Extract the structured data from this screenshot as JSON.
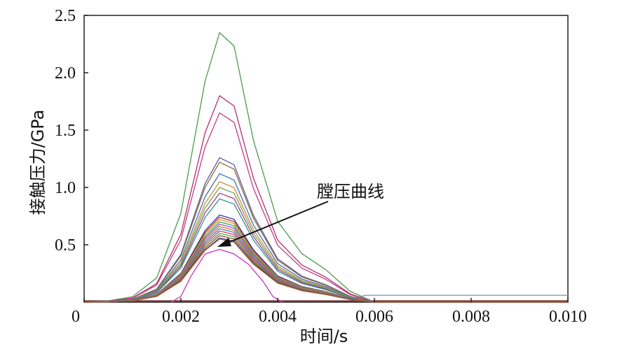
{
  "chart_data": {
    "type": "line",
    "title": "",
    "xlabel": "时间/s",
    "ylabel": "接触压力/GPa",
    "xlim": [
      0,
      0.01
    ],
    "ylim": [
      0,
      2.5
    ],
    "x_ticks": [
      0,
      0.002,
      0.004,
      0.006,
      0.008,
      0.01
    ],
    "x_tick_labels": [
      "0",
      "0.002",
      "0.004",
      "0.006",
      "0.008",
      "0.010"
    ],
    "y_ticks": [
      0.5,
      1.0,
      1.5,
      2.0,
      2.5
    ],
    "y_tick_labels": [
      "0.5",
      "1.0",
      "1.5",
      "2.0",
      "2.5"
    ],
    "grid": false,
    "annotation": {
      "text": "膛压曲线",
      "points_to": {
        "x": 0.0028,
        "y": 0.45
      }
    },
    "x": [
      0,
      0.0005,
      0.001,
      0.0015,
      0.002,
      0.0025,
      0.0028,
      0.0031,
      0.0035,
      0.004,
      0.0045,
      0.005,
      0.0055,
      0.006,
      0.007,
      0.008,
      0.009,
      0.01
    ],
    "shape": [
      0,
      0.005,
      0.02,
      0.09,
      0.33,
      0.82,
      1.0,
      0.95,
      0.6,
      0.3,
      0.18,
      0.12,
      0.04,
      0.0,
      0.0,
      0.0,
      0.0,
      0.0
    ],
    "series": [
      {
        "peak": 2.35,
        "color": "#4a9d4a"
      },
      {
        "peak": 1.8,
        "color": "#b0306a"
      },
      {
        "peak": 1.65,
        "color": "#c23a8a"
      },
      {
        "peak": 1.26,
        "color": "#5a5aa0"
      },
      {
        "peak": 1.22,
        "color": "#8a6a3a"
      },
      {
        "peak": 1.12,
        "color": "#3a70c0"
      },
      {
        "peak": 1.05,
        "color": "#d08a30"
      },
      {
        "peak": 1.0,
        "color": "#6aa84f"
      },
      {
        "peak": 0.95,
        "color": "#a04090"
      },
      {
        "peak": 0.9,
        "color": "#2f8f8f"
      },
      {
        "peak": 0.76,
        "color": "#1f3f9f"
      },
      {
        "peak": 0.74,
        "color": "#c03030"
      },
      {
        "peak": 0.72,
        "color": "#d0a020"
      },
      {
        "peak": 0.7,
        "color": "#30a060"
      },
      {
        "peak": 0.68,
        "color": "#9050c0"
      },
      {
        "peak": 0.66,
        "color": "#e07020"
      },
      {
        "peak": 0.64,
        "color": "#4080c0"
      },
      {
        "peak": 0.62,
        "color": "#c04080"
      },
      {
        "peak": 0.6,
        "color": "#60a030"
      },
      {
        "peak": 0.58,
        "color": "#8a4a2a"
      },
      {
        "peak": 0.56,
        "color": "#3a3a9a"
      },
      {
        "peak": 0.55,
        "color": "#b06030"
      }
    ],
    "pressure_curve": {
      "color": "#d040c0",
      "x": [
        0.0018,
        0.002,
        0.0022,
        0.0025,
        0.0028,
        0.0031,
        0.0034,
        0.0037,
        0.0039,
        0.0041
      ],
      "y": [
        0.0,
        0.05,
        0.22,
        0.42,
        0.46,
        0.42,
        0.33,
        0.18,
        0.05,
        0.0
      ]
    },
    "baseline": {
      "color": "#7a3030",
      "y": 0.01
    },
    "tail_line": {
      "color": "#7aa0c0",
      "x": [
        0.0055,
        0.0058,
        0.01
      ],
      "y": [
        0.02,
        0.06,
        0.06
      ]
    }
  }
}
